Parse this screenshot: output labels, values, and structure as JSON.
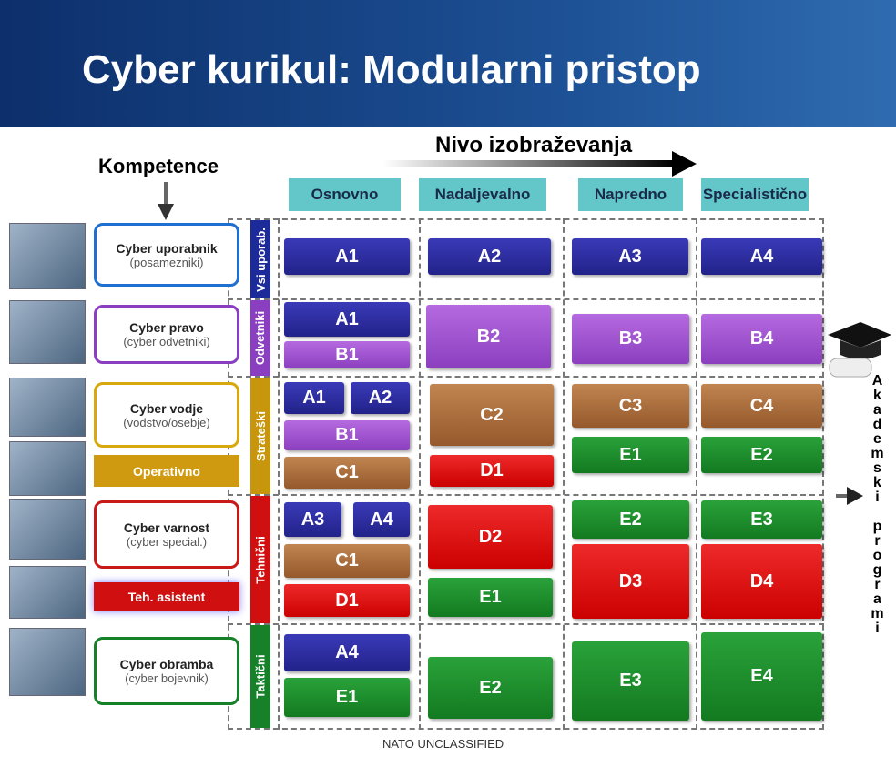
{
  "header": {
    "title": "Cyber kurikul: Modularni pristop"
  },
  "axes": {
    "level_label": "Nivo izobraževanja",
    "competence_label": "Kompetence"
  },
  "columns": [
    "Osnovno",
    "Nadaljevalno",
    "Napredno",
    "Specialistično"
  ],
  "rows": [
    "Vsi uporab.",
    "Odvetniki",
    "Strateški",
    "Tehnični",
    "Taktični"
  ],
  "roles": [
    {
      "label": "Cyber uporabnik",
      "sublabel": "(posamezniki)"
    },
    {
      "label": "Cyber pravo",
      "sublabel": "(cyber odvetniki)"
    },
    {
      "label": "Cyber vodje",
      "sublabel": "(vodstvo/osebje)"
    },
    {
      "label": "Cyber varnost",
      "sublabel": "(cyber special.)"
    },
    {
      "label": "Cyber obramba",
      "sublabel": "(cyber bojevnik)"
    }
  ],
  "role_tags": [
    "Operativno",
    "Teh. asistent"
  ],
  "modules": [
    "A1",
    "A2",
    "A3",
    "A4",
    "A1",
    "B1",
    "B2",
    "B3",
    "B4",
    "A1",
    "A2",
    "B1",
    "C1",
    "C2",
    "D1",
    "C3",
    "E1",
    "C4",
    "E2",
    "A3",
    "A4",
    "C1",
    "D1",
    "D2",
    "E1",
    "E2",
    "D3",
    "E3",
    "D4",
    "A4",
    "E1",
    "E2",
    "E3",
    "E4"
  ],
  "side_label": "Akademski programi",
  "footer": "NATO UNCLASSIFIED"
}
